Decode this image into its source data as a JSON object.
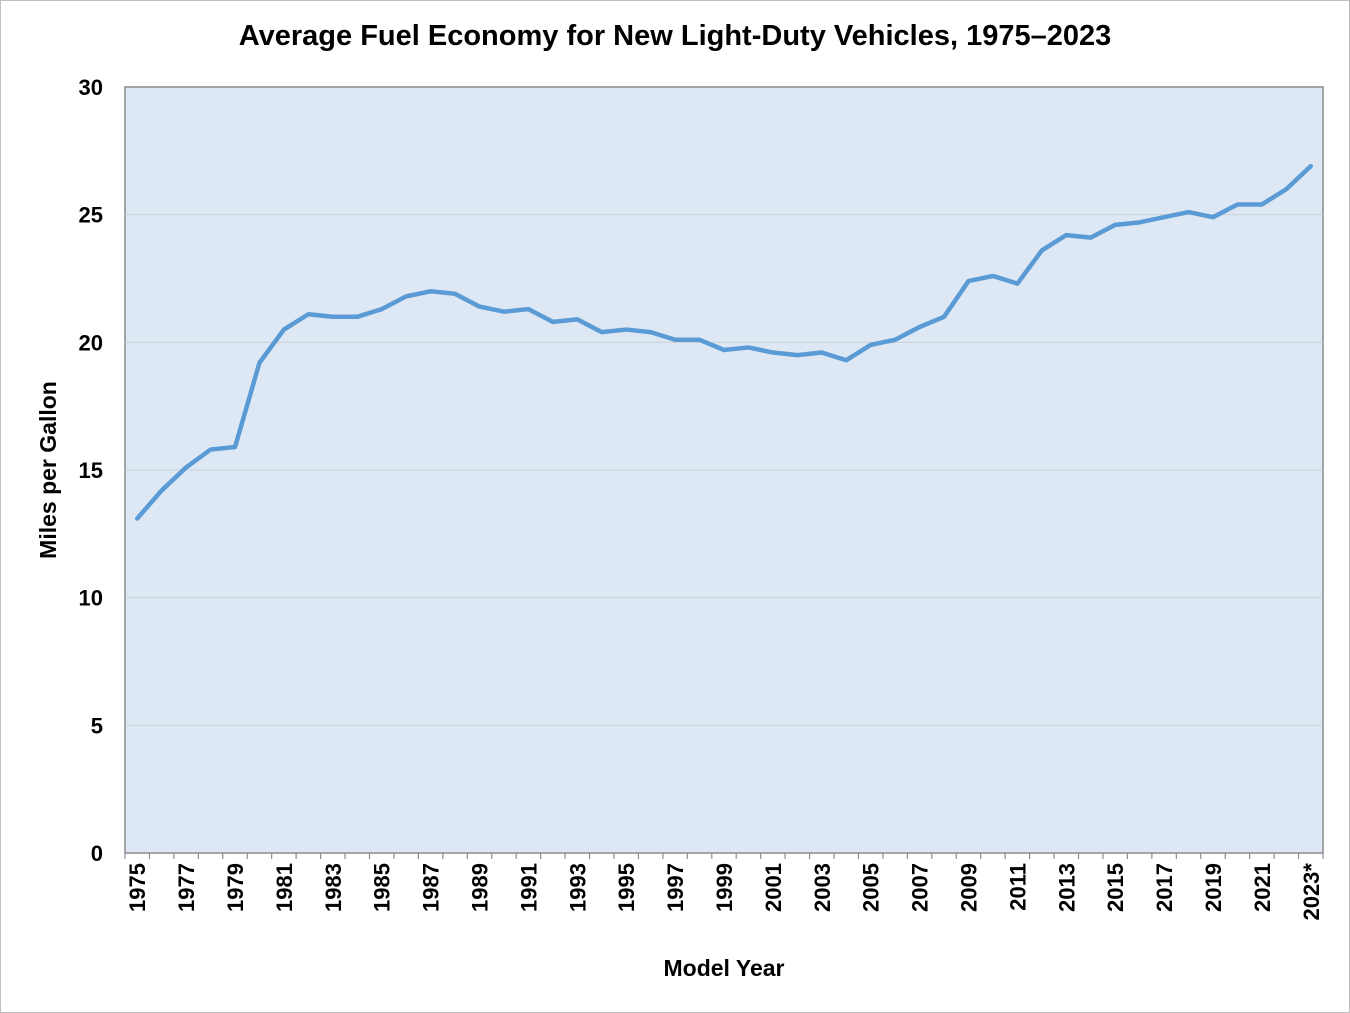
{
  "chart_data": {
    "type": "line",
    "title": "Average Fuel Economy for New Light-Duty Vehicles, 1975–2023",
    "xlabel": "Model Year",
    "ylabel": "Miles per Gallon",
    "ylim": [
      0,
      30
    ],
    "yticks": [
      0,
      5,
      10,
      15,
      20,
      25,
      30
    ],
    "grid": true,
    "x": [
      "1975",
      "1976",
      "1977",
      "1978",
      "1979",
      "1980",
      "1981",
      "1982",
      "1983",
      "1984",
      "1985",
      "1986",
      "1987",
      "1988",
      "1989",
      "1990",
      "1991",
      "1992",
      "1993",
      "1994",
      "1995",
      "1996",
      "1997",
      "1998",
      "1999",
      "2000",
      "2001",
      "2002",
      "2003",
      "2004",
      "2005",
      "2006",
      "2007",
      "2008",
      "2009",
      "2010",
      "2011",
      "2012",
      "2013",
      "2014",
      "2015",
      "2016",
      "2017",
      "2018",
      "2019",
      "2020",
      "2021",
      "2022",
      "2023*"
    ],
    "x_tick_labels": [
      "1975",
      "1977",
      "1979",
      "1981",
      "1983",
      "1985",
      "1987",
      "1989",
      "1991",
      "1993",
      "1995",
      "1997",
      "1999",
      "2001",
      "2003",
      "2005",
      "2007",
      "2009",
      "2011",
      "2013",
      "2015",
      "2017",
      "2019",
      "2021",
      "2023*"
    ],
    "series": [
      {
        "name": "Average Fuel Economy",
        "color": "#5b9bd5",
        "values": [
          13.1,
          14.2,
          15.1,
          15.8,
          15.9,
          19.2,
          20.5,
          21.1,
          21.0,
          21.0,
          21.3,
          21.8,
          22.0,
          21.9,
          21.4,
          21.2,
          21.3,
          20.8,
          20.9,
          20.4,
          20.5,
          20.4,
          20.1,
          20.1,
          19.7,
          19.8,
          19.6,
          19.5,
          19.6,
          19.3,
          19.9,
          20.1,
          20.6,
          21.0,
          22.4,
          22.6,
          22.3,
          23.6,
          24.2,
          24.1,
          24.6,
          24.7,
          24.9,
          25.1,
          24.9,
          25.4,
          25.4,
          26.0,
          26.9
        ]
      }
    ],
    "colors": {
      "plot_background": "#dde8f4",
      "grid": "#c9cfd6",
      "axis": "#8c8c8c",
      "line": "#5b9bd5"
    }
  }
}
